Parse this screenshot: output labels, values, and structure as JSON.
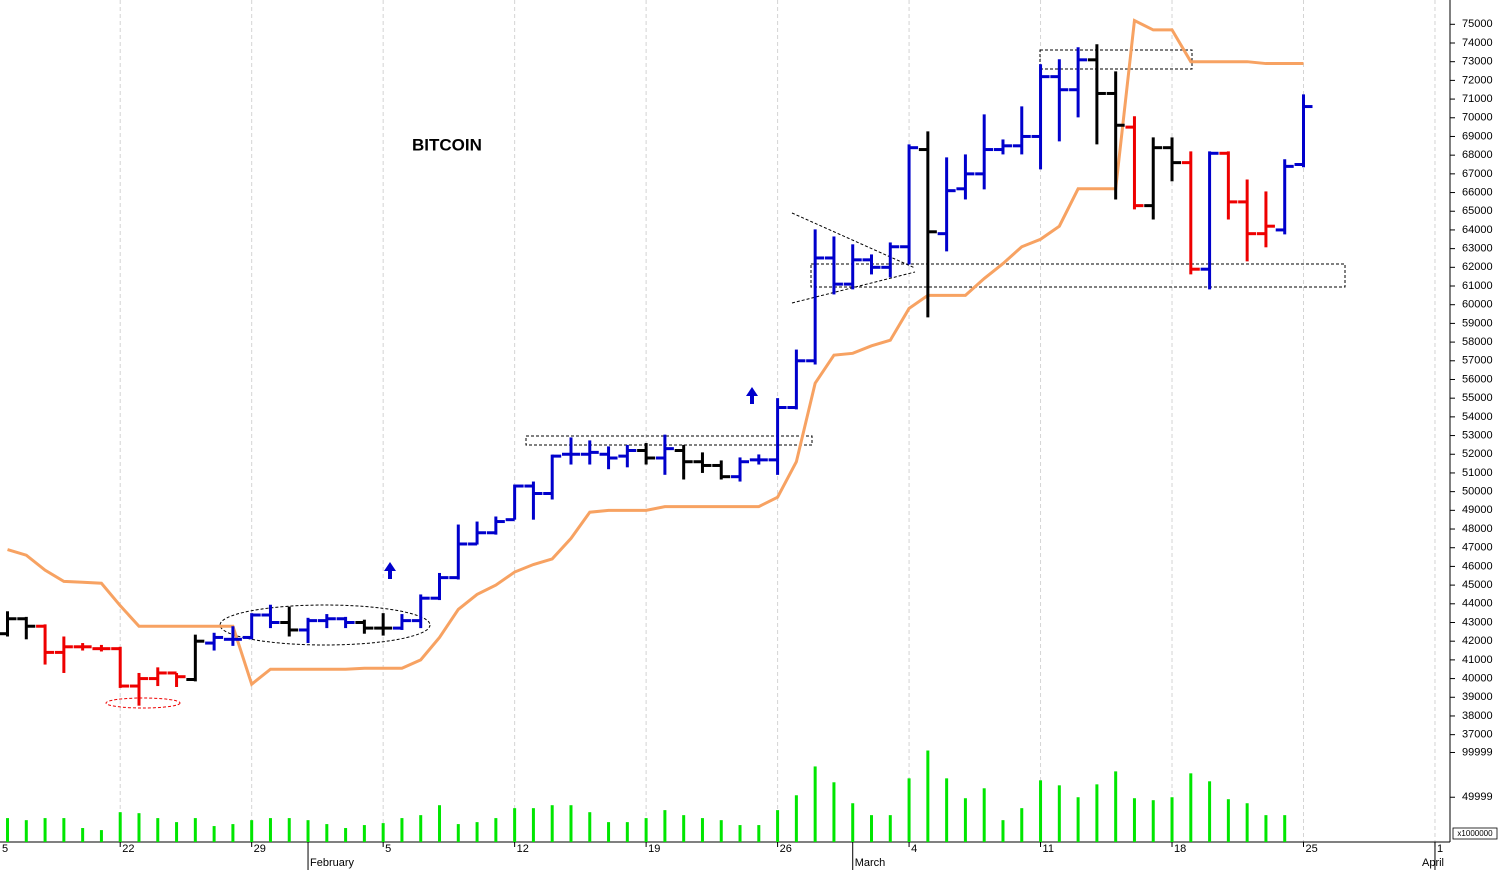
{
  "chart_data": [
    {
      "type": "ohlc",
      "title": "BITCOIN",
      "x": [
        0,
        1,
        2,
        3,
        4,
        5,
        6,
        7,
        8,
        9,
        10,
        11,
        12,
        13,
        14,
        15,
        16,
        17,
        18,
        19,
        20,
        21,
        22,
        23,
        24,
        25,
        26,
        27,
        28,
        29,
        30,
        31,
        32,
        33,
        34,
        35,
        36,
        37,
        38,
        39,
        40,
        41,
        42,
        43,
        44,
        45,
        46,
        47,
        48,
        49,
        50,
        51,
        52,
        53,
        54,
        55,
        56,
        57,
        58,
        59,
        60,
        61,
        62,
        63,
        64,
        65,
        66,
        67,
        68,
        69
      ],
      "open": [
        42400,
        43200,
        42800,
        41400,
        41700,
        41600,
        41600,
        39600,
        40000,
        40300,
        39950,
        41900,
        42100,
        42200,
        43400,
        43000,
        42600,
        43100,
        43200,
        43000,
        42700,
        42700,
        43100,
        44300,
        45400,
        47200,
        47800,
        48500,
        50300,
        49900,
        52000,
        52000,
        52000,
        51900,
        52200,
        51800,
        52200,
        51600,
        51400,
        50800,
        51700,
        51700,
        54500,
        57000,
        62500,
        61100,
        62400,
        62000,
        63100,
        68300,
        63800,
        66200,
        67000,
        68300,
        68500,
        69000,
        72200,
        71500,
        73100,
        71300,
        69500,
        65300,
        68400,
        67600,
        61900,
        68100,
        65500,
        63800,
        64000,
        67500
      ],
      "high": [
        43600,
        43300,
        42900,
        42250,
        41900,
        41800,
        41700,
        40300,
        40600,
        40300,
        42350,
        42450,
        42800,
        43500,
        43950,
        43850,
        43250,
        43450,
        43300,
        43150,
        43500,
        43450,
        44500,
        45650,
        48240,
        48400,
        48670,
        50380,
        50540,
        51980,
        52900,
        52740,
        52420,
        52500,
        52600,
        53050,
        52500,
        52100,
        51670,
        51830,
        51990,
        55000,
        57600,
        64030,
        63650,
        63230,
        62690,
        63330,
        68580,
        69270,
        67880,
        68040,
        70180,
        68840,
        70610,
        72860,
        73130,
        73770,
        73930,
        72480,
        70080,
        68950,
        68950,
        68200,
        68200,
        68200,
        66700,
        66060,
        67780,
        71250
      ],
      "low": [
        42250,
        42100,
        40750,
        40300,
        41500,
        41450,
        39500,
        38550,
        39600,
        39550,
        39850,
        41500,
        41750,
        42100,
        42700,
        42250,
        41900,
        42700,
        42700,
        42400,
        42300,
        42600,
        42700,
        44200,
        45300,
        47170,
        47700,
        48500,
        48500,
        49580,
        51450,
        51450,
        51200,
        51300,
        51450,
        50900,
        50650,
        51000,
        50650,
        50540,
        51450,
        50900,
        54400,
        56800,
        60550,
        60820,
        61620,
        61460,
        62150,
        59320,
        62850,
        65630,
        66170,
        68040,
        68040,
        67240,
        68740,
        70020,
        68580,
        65630,
        65100,
        64560,
        66600,
        61620,
        60820,
        64560,
        62320,
        63070,
        63760,
        67350
      ],
      "close": [
        43200,
        42800,
        41400,
        41700,
        41700,
        41600,
        39600,
        40000,
        40300,
        40100,
        42000,
        42200,
        42100,
        43400,
        43000,
        42600,
        43100,
        43200,
        43000,
        42700,
        42700,
        43100,
        44300,
        45400,
        47200,
        47800,
        48400,
        50300,
        49900,
        51900,
        52000,
        52100,
        51800,
        52200,
        51800,
        52300,
        51600,
        51400,
        50800,
        51600,
        51700,
        54500,
        57000,
        62500,
        61100,
        62400,
        62000,
        63100,
        68400,
        63900,
        66100,
        67000,
        68300,
        68500,
        69000,
        72200,
        71500,
        73100,
        71300,
        69600,
        65300,
        68400,
        67600,
        61900,
        68100,
        65500,
        63800,
        64200,
        67400,
        70600
      ],
      "colors": [
        "#000000",
        "#000000",
        "#ee0000",
        "#ee0000",
        "#ee0000",
        "#ee0000",
        "#ee0000",
        "#ee0000",
        "#ee0000",
        "#ee0000",
        "#000000",
        "#0000cc",
        "#0000cc",
        "#0000cc",
        "#0000cc",
        "#000000",
        "#0000cc",
        "#0000cc",
        "#0000cc",
        "#000000",
        "#000000",
        "#0000cc",
        "#0000cc",
        "#0000cc",
        "#0000cc",
        "#0000cc",
        "#0000cc",
        "#0000cc",
        "#0000cc",
        "#0000cc",
        "#0000cc",
        "#0000cc",
        "#0000cc",
        "#0000cc",
        "#000000",
        "#0000cc",
        "#000000",
        "#000000",
        "#000000",
        "#0000cc",
        "#0000cc",
        "#0000cc",
        "#0000cc",
        "#0000cc",
        "#0000cc",
        "#0000cc",
        "#0000cc",
        "#0000cc",
        "#0000cc",
        "#000000",
        "#0000cc",
        "#0000cc",
        "#0000cc",
        "#0000cc",
        "#0000cc",
        "#0000cc",
        "#0000cc",
        "#0000cc",
        "#000000",
        "#000000",
        "#ee0000",
        "#000000",
        "#000000",
        "#ee0000",
        "#0000cc",
        "#ee0000",
        "#ee0000",
        "#ee0000",
        "#0000cc",
        "#0000cc"
      ],
      "line": {
        "color": "#f7a262",
        "values": [
          46900,
          46600,
          45800,
          45200,
          45150,
          45100,
          43900,
          42800,
          42800,
          42800,
          42800,
          42800,
          42800,
          39700,
          40500,
          40500,
          40500,
          40500,
          40500,
          40550,
          40550,
          40550,
          41000,
          42200,
          43700,
          44500,
          45000,
          45700,
          46100,
          46400,
          47500,
          48900,
          49000,
          49000,
          49000,
          49200,
          49200,
          49200,
          49200,
          49200,
          49200,
          49700,
          51600,
          55800,
          57300,
          57400,
          57800,
          58100,
          59800,
          60500,
          60500,
          60500,
          61400,
          62200,
          63100,
          63500,
          64200,
          66200,
          66200,
          66200,
          75200,
          74700,
          74700,
          73000,
          73000,
          73000,
          73000,
          72900,
          72900,
          72900
        ]
      },
      "xlim": [
        -0.4,
        76.8
      ],
      "xticks": [
        {
          "value": -1,
          "label": "5"
        },
        {
          "value": 6,
          "label": "22"
        },
        {
          "value": 13,
          "label": "29"
        },
        {
          "value": 20,
          "label": "5"
        },
        {
          "value": 27,
          "label": "12"
        },
        {
          "value": 34,
          "label": "19"
        },
        {
          "value": 41,
          "label": "26"
        },
        {
          "value": 48,
          "label": "4"
        },
        {
          "value": 55,
          "label": "11"
        },
        {
          "value": 62,
          "label": "18"
        },
        {
          "value": 69,
          "label": "25"
        },
        {
          "value": 76,
          "label": "1"
        }
      ],
      "months": [
        {
          "value": 16,
          "label": "February"
        },
        {
          "value": 45,
          "label": "March"
        },
        {
          "value": 76,
          "label": "April"
        }
      ],
      "ylim": [
        36500,
        76300
      ],
      "yticks": [
        37000,
        38000,
        39000,
        40000,
        41000,
        42000,
        43000,
        44000,
        45000,
        46000,
        47000,
        48000,
        49000,
        50000,
        51000,
        52000,
        53000,
        54000,
        55000,
        56000,
        57000,
        58000,
        59000,
        60000,
        61000,
        62000,
        63000,
        64000,
        65000,
        66000,
        67000,
        68000,
        69000,
        70000,
        71000,
        72000,
        73000,
        74000,
        75000
      ],
      "grid": true
    },
    {
      "type": "bar",
      "color": "#00e600",
      "scale_label": "x1000000",
      "values": [
        26700,
        24400,
        26700,
        26700,
        15600,
        13300,
        33300,
        32200,
        26700,
        22200,
        26700,
        17800,
        20000,
        24400,
        26700,
        26700,
        24400,
        20000,
        15600,
        18900,
        21100,
        26700,
        30000,
        41100,
        20000,
        22200,
        26700,
        37800,
        37800,
        41100,
        41100,
        33300,
        22200,
        22200,
        26700,
        35600,
        30000,
        26700,
        24400,
        18900,
        18900,
        35600,
        52200,
        84400,
        66700,
        43300,
        30000,
        30000,
        71100,
        102200,
        71100,
        48900,
        60000,
        24400,
        37800,
        68900,
        63300,
        50000,
        64400,
        78900,
        48900,
        46700,
        50000,
        76700,
        67800,
        47800,
        43300,
        30000,
        30000,
        null
      ],
      "ylim": [
        0,
        105000
      ],
      "yticks": [
        49999,
        99999
      ]
    }
  ]
}
